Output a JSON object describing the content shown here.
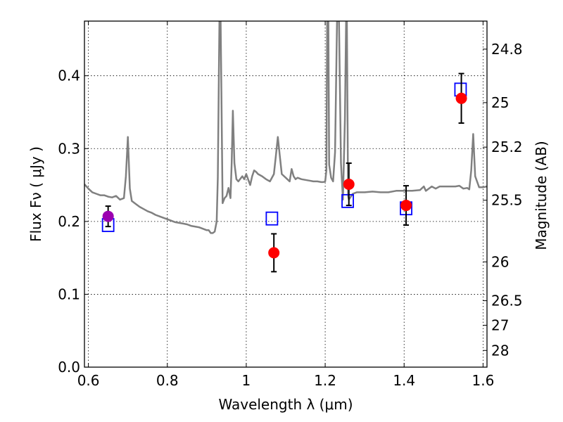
{
  "chart_data": {
    "type": "scatter",
    "xlabel": "Wavelength  λ (μm)",
    "ylabel": "Flux  Fν  ( μJy )",
    "ylabel_right": "Magnitude (AB)",
    "xlim": [
      0.59,
      1.61
    ],
    "ylim": [
      0.0,
      0.475
    ],
    "grid": true,
    "x_ticks": [
      0.6,
      0.8,
      1.0,
      1.2,
      1.4,
      1.6
    ],
    "x_tick_labels": [
      "0.6",
      "0.8",
      "1",
      "1.2",
      "1.4",
      "1.6"
    ],
    "y_ticks": [
      0.0,
      0.1,
      0.2,
      0.3,
      0.4
    ],
    "y_tick_labels": [
      "0.0",
      "0.1",
      "0.2",
      "0.3",
      "0.4"
    ],
    "right_ticks": [
      {
        "label": "24.8",
        "flux": 0.4365
      },
      {
        "label": "25",
        "flux": 0.3631
      },
      {
        "label": "25.2",
        "flux": 0.302
      },
      {
        "label": "25.5",
        "flux": 0.2291
      },
      {
        "label": "26",
        "flux": 0.1445
      },
      {
        "label": "26.5",
        "flux": 0.0912
      },
      {
        "label": "27",
        "flux": 0.0575
      },
      {
        "label": "28",
        "flux": 0.0229
      }
    ],
    "colors": {
      "observed": "#ff0000",
      "observed_first": "#9b00b0",
      "model": "#0000ff",
      "spectrum": "#808080",
      "errorbar": "#000000"
    },
    "series": [
      {
        "kind": "observed",
        "x": [
          0.65,
          1.07,
          1.26,
          1.405,
          1.545
        ],
        "y": [
          0.207,
          0.157,
          0.251,
          0.222,
          0.369
        ],
        "yerr": [
          0.014,
          0.026,
          0.029,
          0.027,
          0.034
        ]
      },
      {
        "kind": "model",
        "x": [
          0.65,
          1.065,
          1.257,
          1.405,
          1.543
        ],
        "y": [
          0.195,
          0.204,
          0.228,
          0.218,
          0.381
        ]
      },
      {
        "kind": "spectrum",
        "x": [
          0.59,
          0.6,
          0.61,
          0.62,
          0.63,
          0.64,
          0.65,
          0.66,
          0.67,
          0.68,
          0.69,
          0.695,
          0.7,
          0.705,
          0.71,
          0.72,
          0.73,
          0.74,
          0.75,
          0.76,
          0.77,
          0.78,
          0.79,
          0.8,
          0.81,
          0.82,
          0.83,
          0.84,
          0.85,
          0.86,
          0.87,
          0.88,
          0.89,
          0.9,
          0.905,
          0.91,
          0.915,
          0.92,
          0.925,
          0.928,
          0.932,
          0.935,
          0.94,
          0.945,
          0.95,
          0.955,
          0.96,
          0.963,
          0.966,
          0.97,
          0.975,
          0.98,
          0.99,
          0.995,
          1.0,
          1.01,
          1.015,
          1.02,
          1.025,
          1.03,
          1.04,
          1.05,
          1.06,
          1.07,
          1.075,
          1.08,
          1.085,
          1.09,
          1.1,
          1.11,
          1.115,
          1.12,
          1.125,
          1.13,
          1.14,
          1.15,
          1.16,
          1.17,
          1.18,
          1.19,
          1.195,
          1.2,
          1.203,
          1.205,
          1.208,
          1.21,
          1.215,
          1.22,
          1.225,
          1.23,
          1.235,
          1.24,
          1.245,
          1.25,
          1.253,
          1.255,
          1.258,
          1.26,
          1.27,
          1.28,
          1.3,
          1.32,
          1.34,
          1.36,
          1.38,
          1.4,
          1.42,
          1.44,
          1.45,
          1.455,
          1.46,
          1.47,
          1.48,
          1.49,
          1.5,
          1.51,
          1.52,
          1.53,
          1.54,
          1.55,
          1.56,
          1.565,
          1.57,
          1.575,
          1.58,
          1.59,
          1.6,
          1.61
        ],
        "y": [
          0.251,
          0.245,
          0.24,
          0.238,
          0.236,
          0.236,
          0.234,
          0.233,
          0.235,
          0.23,
          0.232,
          0.262,
          0.316,
          0.245,
          0.228,
          0.224,
          0.22,
          0.217,
          0.214,
          0.212,
          0.209,
          0.207,
          0.205,
          0.203,
          0.201,
          0.199,
          0.198,
          0.197,
          0.196,
          0.194,
          0.193,
          0.192,
          0.19,
          0.188,
          0.188,
          0.184,
          0.184,
          0.186,
          0.2,
          0.26,
          0.475,
          0.475,
          0.225,
          0.232,
          0.235,
          0.246,
          0.232,
          0.28,
          0.352,
          0.28,
          0.258,
          0.255,
          0.262,
          0.258,
          0.265,
          0.25,
          0.262,
          0.27,
          0.268,
          0.265,
          0.262,
          0.258,
          0.255,
          0.265,
          0.29,
          0.316,
          0.29,
          0.265,
          0.26,
          0.255,
          0.272,
          0.262,
          0.258,
          0.26,
          0.258,
          0.257,
          0.256,
          0.255,
          0.255,
          0.254,
          0.254,
          0.255,
          0.27,
          0.475,
          0.475,
          0.278,
          0.26,
          0.255,
          0.295,
          0.475,
          0.475,
          0.28,
          0.23,
          0.34,
          0.475,
          0.475,
          0.235,
          0.23,
          0.238,
          0.24,
          0.24,
          0.241,
          0.24,
          0.24,
          0.242,
          0.242,
          0.242,
          0.243,
          0.248,
          0.242,
          0.244,
          0.248,
          0.245,
          0.248,
          0.248,
          0.248,
          0.248,
          0.248,
          0.249,
          0.245,
          0.246,
          0.244,
          0.27,
          0.32,
          0.262,
          0.247,
          0.247,
          0.248
        ]
      }
    ]
  }
}
